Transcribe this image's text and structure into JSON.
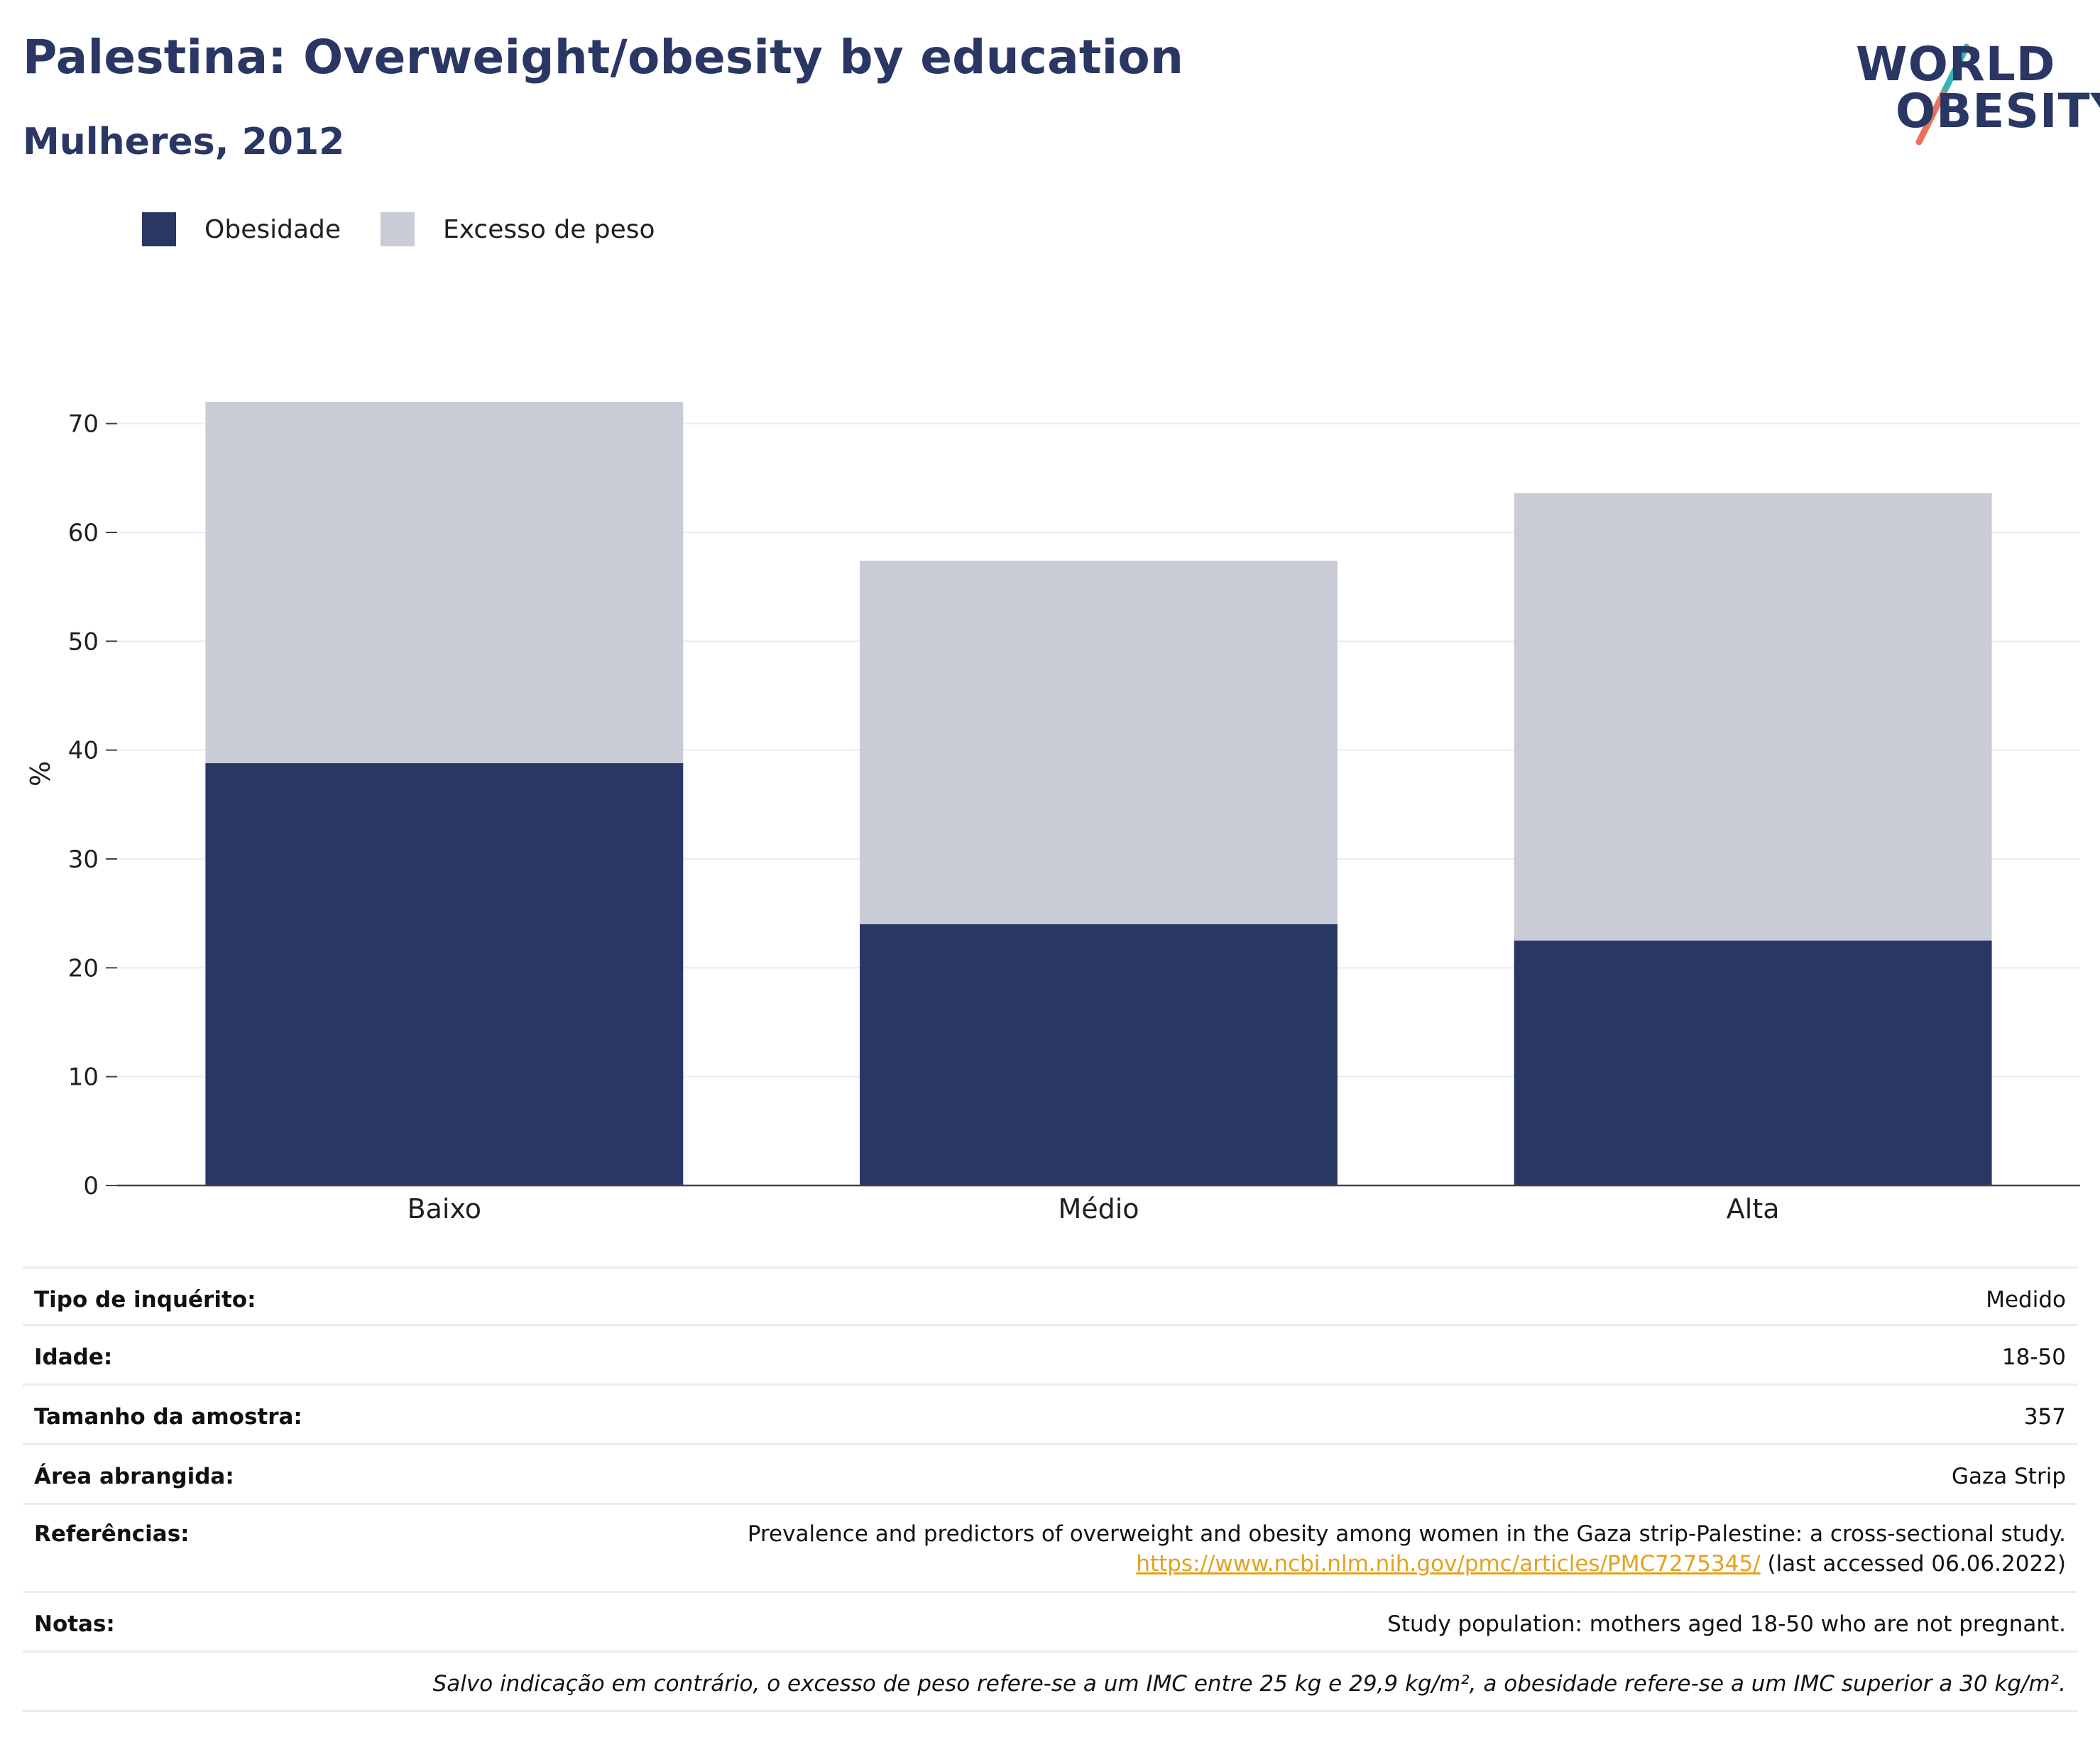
{
  "header": {
    "title": "Palestina: Overweight/obesity by education",
    "subtitle": "Mulheres, 2012",
    "logo_line1": "WORLD",
    "logo_line2": "OBESITY"
  },
  "legend": {
    "items": [
      {
        "label": "Obesidade",
        "color": "#2a3663"
      },
      {
        "label": "Excesso de peso",
        "color": "#c9cbd6"
      }
    ]
  },
  "chart_data": {
    "type": "bar",
    "stacked": false,
    "overlay": true,
    "categories": [
      "Baixo",
      "Médio",
      "Alta"
    ],
    "series": [
      {
        "name": "Excesso de peso",
        "color": "#c9cbd6",
        "values": [
          72.0,
          57.4,
          63.6
        ]
      },
      {
        "name": "Obesidade",
        "color": "#2a3663",
        "values": [
          38.8,
          24.0,
          22.5
        ]
      }
    ],
    "ylabel": "%",
    "xlabel": "",
    "ylim": [
      0,
      75
    ],
    "yticks": [
      0,
      10,
      20,
      30,
      40,
      50,
      60,
      70
    ],
    "grid": true,
    "legend_position": "top-left"
  },
  "info": {
    "rows": [
      {
        "key": "Tipo de inquérito:",
        "value": "Medido"
      },
      {
        "key": "Idade:",
        "value": "18-50"
      },
      {
        "key": "Tamanho da amostra:",
        "value": "357"
      },
      {
        "key": "Área abrangida:",
        "value": "Gaza Strip"
      }
    ],
    "references": {
      "key": "Referências:",
      "text": "Prevalence and predictors of overweight and obesity among women in the Gaza strip-Palestine: a cross-sectional study.",
      "link": "https://www.ncbi.nlm.nih.gov/pmc/articles/PMC7275345/",
      "accessed": " (last accessed 06.06.2022)"
    },
    "notes": {
      "key": "Notas:",
      "value": "Study population: mothers aged 18-50 who are not pregnant."
    },
    "footnote": "Salvo indicação em contrário, o excesso de peso refere-se a um IMC entre 25 kg e 29,9 kg/m², a obesidade refere-se a um IMC superior a 30 kg/m²."
  },
  "colors": {
    "brand_navy": "#2a3663",
    "brand_teal": "#3ab3b6",
    "brand_coral": "#e8735a",
    "link": "#e4a11b",
    "grid": "#e9ecf5"
  }
}
